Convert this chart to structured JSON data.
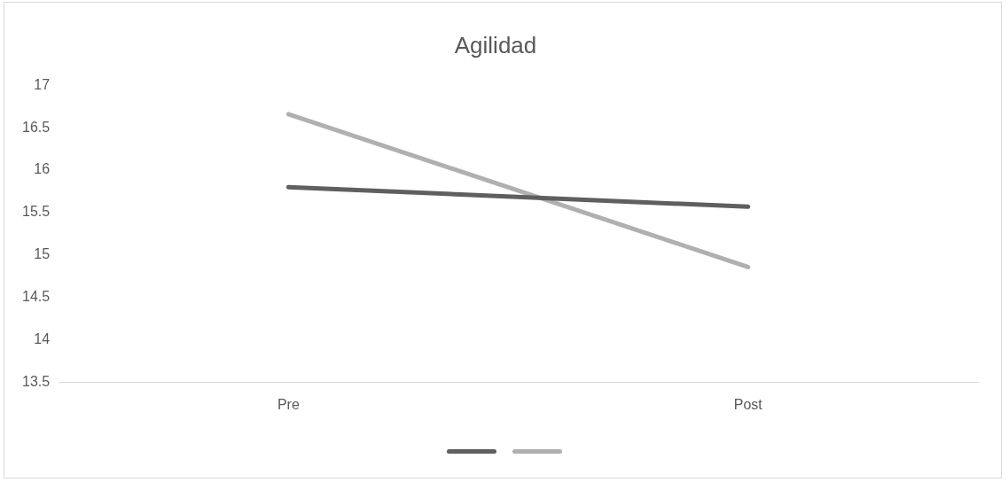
{
  "chart_data": {
    "type": "line",
    "title": "Agilidad",
    "categories": [
      "Pre",
      "Post"
    ],
    "series": [
      {
        "color": "#5f5f5f",
        "values": [
          15.8,
          15.57
        ]
      },
      {
        "color": "#b0b0b0",
        "values": [
          16.66,
          14.86
        ]
      }
    ],
    "ylim": [
      13.5,
      17
    ],
    "yticks": [
      13.5,
      14,
      14.5,
      15,
      15.5,
      16,
      16.5,
      17
    ],
    "grid": false,
    "marker": "none",
    "line_style": "solid"
  }
}
